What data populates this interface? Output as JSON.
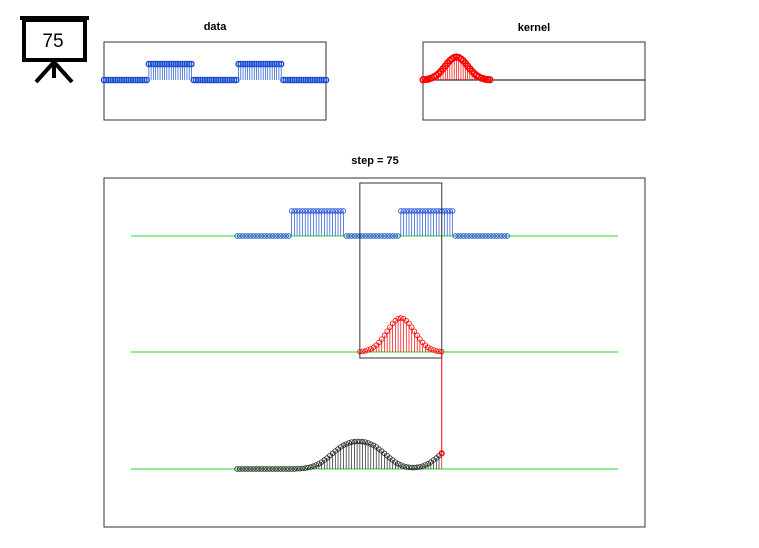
{
  "step": 75,
  "chart_data": [
    {
      "type": "stem",
      "title": "data",
      "color": "#1c4fd4",
      "values": [
        0,
        0,
        0,
        0,
        0,
        0,
        0,
        0,
        0,
        0,
        0,
        0,
        0,
        0,
        0,
        0,
        0,
        0,
        0,
        0,
        1,
        1,
        1,
        1,
        1,
        1,
        1,
        1,
        1,
        1,
        1,
        1,
        1,
        1,
        1,
        1,
        1,
        1,
        1,
        1,
        0,
        0,
        0,
        0,
        0,
        0,
        0,
        0,
        0,
        0,
        0,
        0,
        0,
        0,
        0,
        0,
        0,
        0,
        0,
        0,
        1,
        1,
        1,
        1,
        1,
        1,
        1,
        1,
        1,
        1,
        1,
        1,
        1,
        1,
        1,
        1,
        1,
        1,
        1,
        1,
        0,
        0,
        0,
        0,
        0,
        0,
        0,
        0,
        0,
        0,
        0,
        0,
        0,
        0,
        0,
        0,
        0,
        0,
        0,
        0
      ]
    },
    {
      "type": "stem",
      "title": "kernel",
      "color": "#ff0000",
      "values": [
        0.01,
        0.02,
        0.03,
        0.06,
        0.09,
        0.14,
        0.2,
        0.28,
        0.38,
        0.49,
        0.61,
        0.73,
        0.84,
        0.92,
        0.98,
        1,
        0.98,
        0.92,
        0.84,
        0.73,
        0.61,
        0.49,
        0.38,
        0.28,
        0.2,
        0.14,
        0.09,
        0.06,
        0.03,
        0.02,
        0.01
      ]
    },
    {
      "type": "convolution",
      "title": "step = 75",
      "color": "#222222",
      "baseline_color": "#22dd22",
      "values": [
        0,
        0,
        0,
        0,
        0,
        0,
        0,
        0,
        0,
        0,
        0,
        0,
        0,
        0,
        0,
        0,
        0,
        0,
        0,
        0,
        0,
        0,
        0.01,
        0.01,
        0.02,
        0.03,
        0.05,
        0.07,
        0.1,
        0.14,
        0.18,
        0.24,
        0.31,
        0.38,
        0.46,
        0.54,
        0.62,
        0.69,
        0.76,
        0.82,
        0.86,
        0.9,
        0.93,
        0.94,
        0.95,
        0.95,
        0.94,
        0.93,
        0.9,
        0.86,
        0.82,
        0.76,
        0.69,
        0.62,
        0.54,
        0.46,
        0.38,
        0.31,
        0.24,
        0.18,
        0.14,
        0.1,
        0.07,
        0.06,
        0.05,
        0.05,
        0.06,
        0.07,
        0.1,
        0.14,
        0.18,
        0.24,
        0.31,
        0.38,
        0.46,
        0.54
      ]
    }
  ]
}
